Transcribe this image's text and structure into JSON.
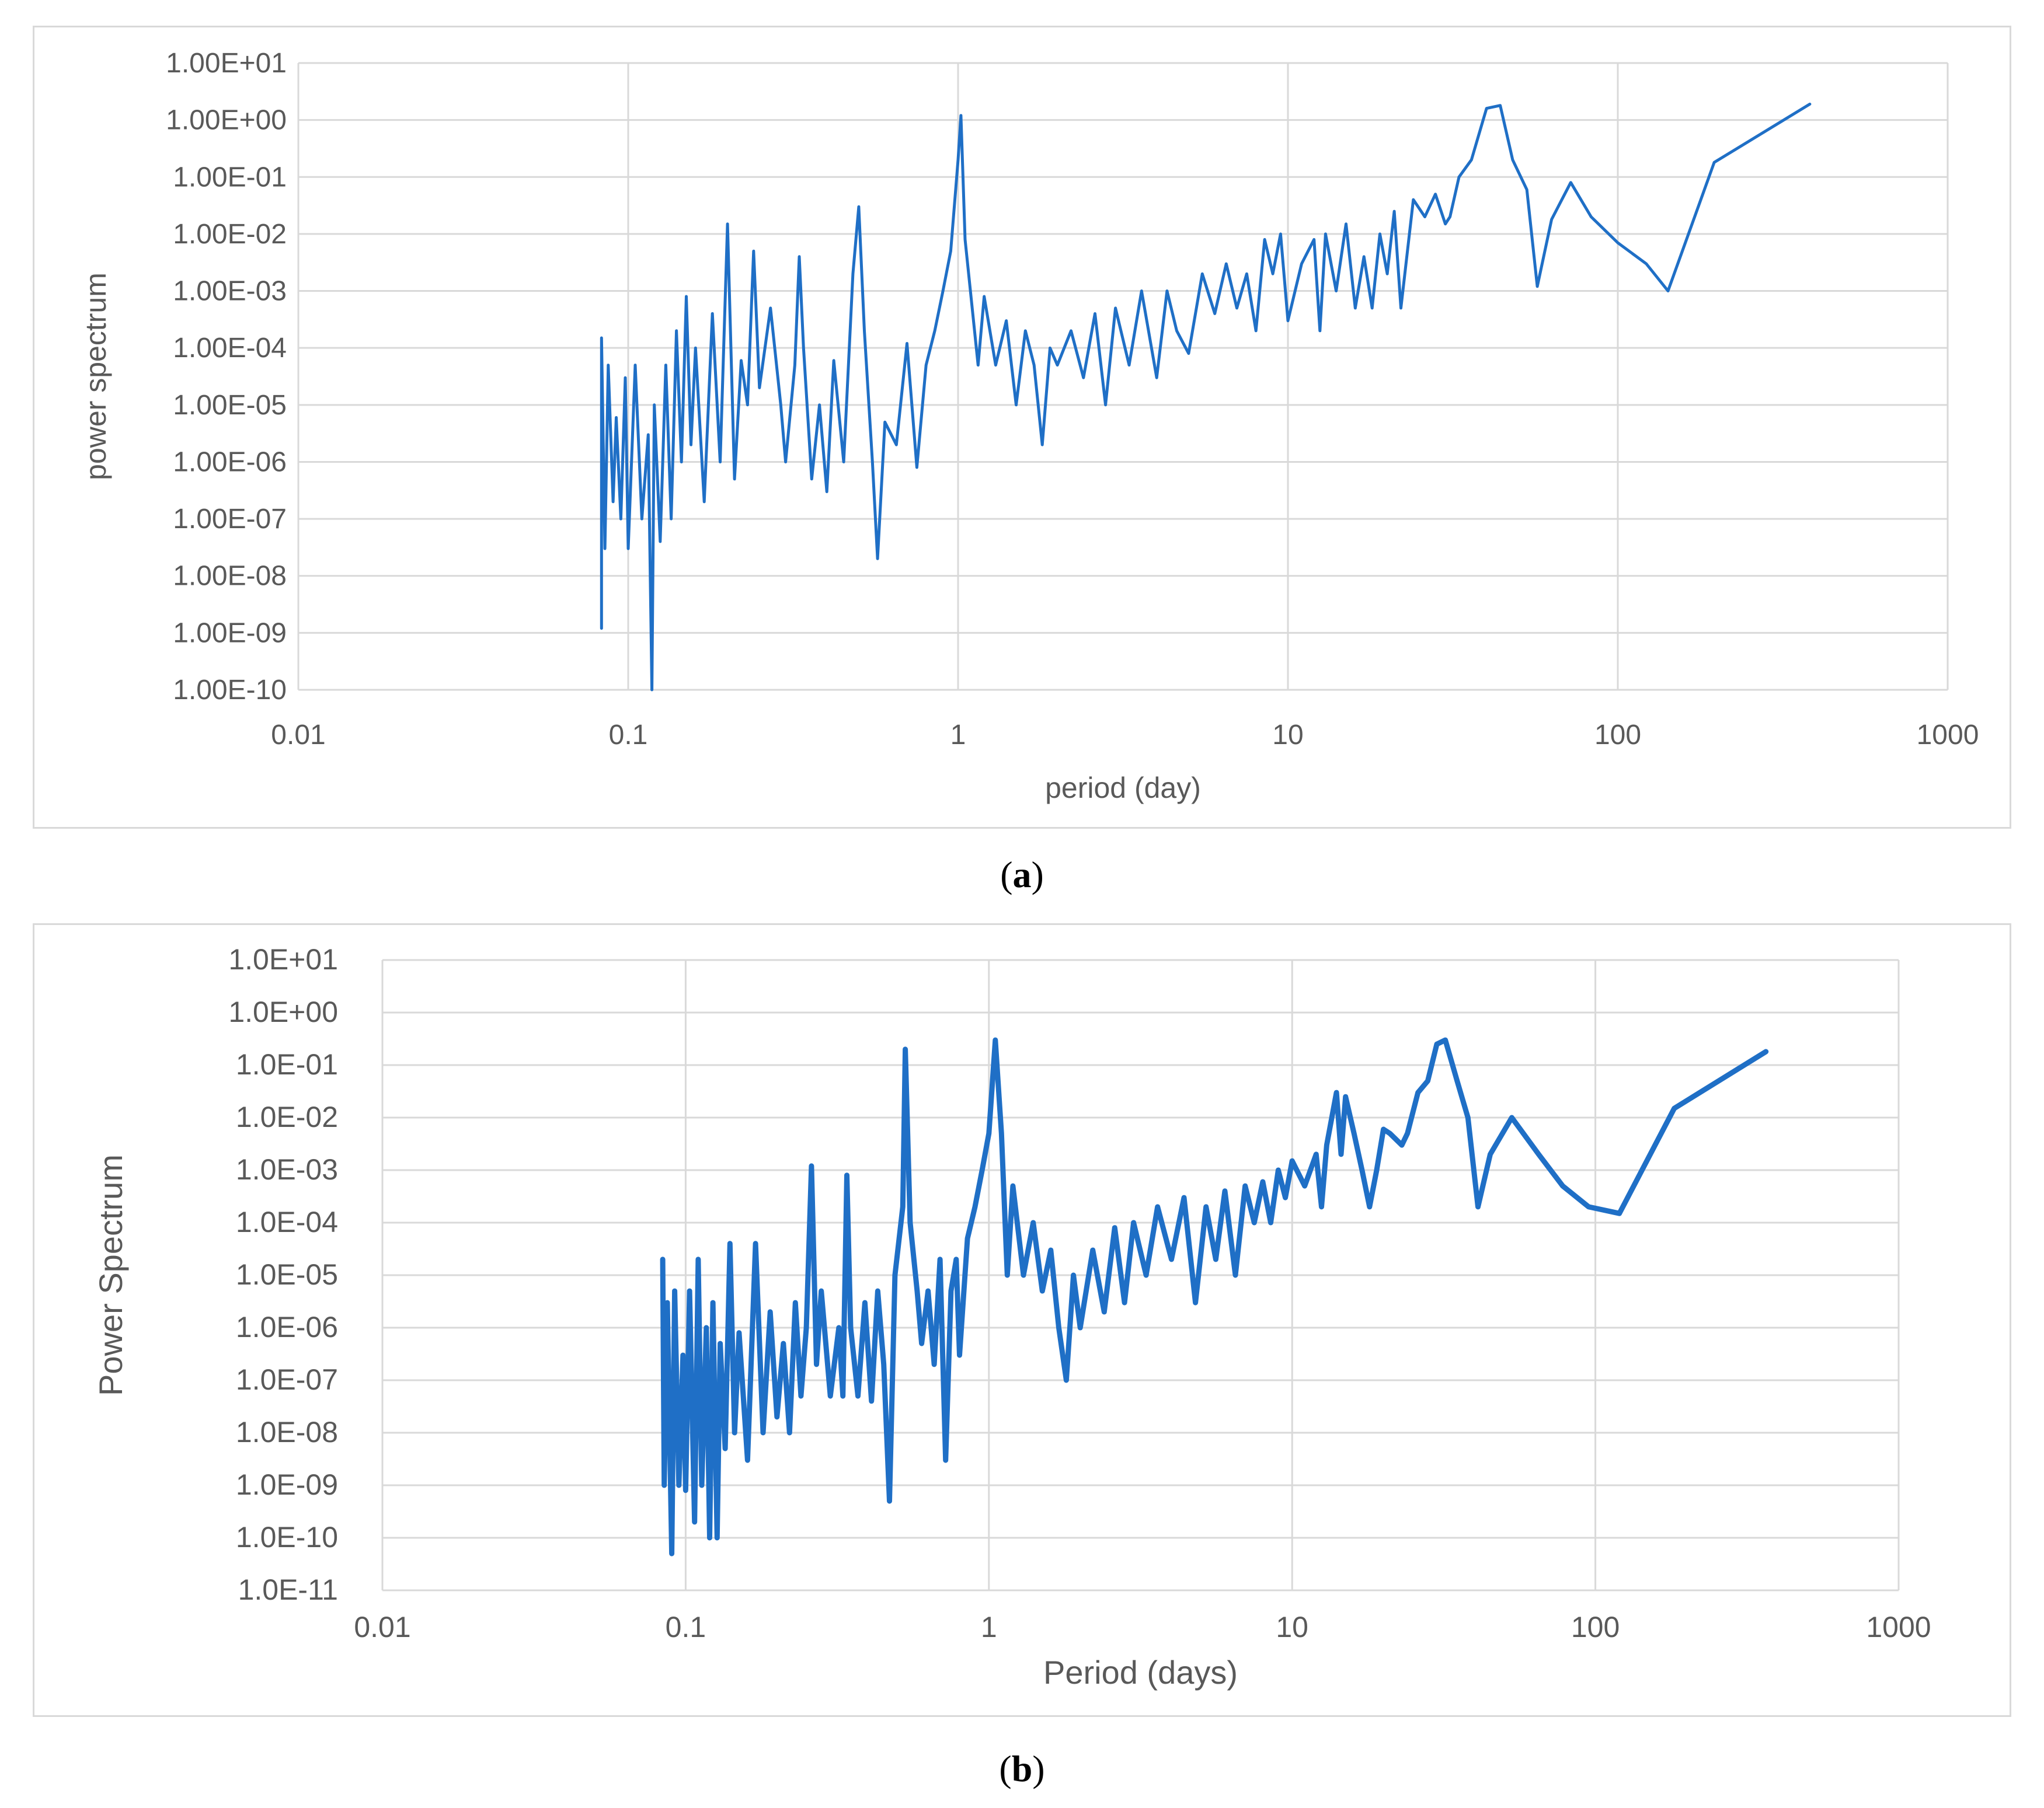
{
  "captions": {
    "a": {
      "open": "(",
      "letter": "a",
      "close": ")"
    },
    "b": {
      "open": "(",
      "letter": "b",
      "close": ")"
    }
  },
  "colors": {
    "series": "#1f6fc6",
    "grid": "#d9d9d9",
    "text": "#595959"
  },
  "chart_data": [
    {
      "id": "a",
      "type": "line",
      "xscale": "log",
      "yscale": "log",
      "xlabel": "period (day)",
      "ylabel": "power spectrum",
      "xlim": [
        0.01,
        1000
      ],
      "ylim": [
        1e-10,
        10
      ],
      "x_tick_labels": [
        "0.01",
        "0.1",
        "1",
        "10",
        "100",
        "1000"
      ],
      "y_tick_labels": [
        "1.00E-10",
        "1.00E-09",
        "1.00E-08",
        "1.00E-07",
        "1.00E-06",
        "1.00E-05",
        "1.00E-04",
        "1.00E-03",
        "1.00E-02",
        "1.00E-01",
        "1.00E+00",
        "1.00E+01"
      ],
      "series": [
        {
          "name": "power spectrum",
          "points": [
            [
              0.083,
              1.2e-09
            ],
            [
              0.083,
              0.00015
            ],
            [
              0.085,
              3e-08
            ],
            [
              0.087,
              5e-05
            ],
            [
              0.09,
              2e-07
            ],
            [
              0.092,
              6e-06
            ],
            [
              0.095,
              1e-07
            ],
            [
              0.098,
              3e-05
            ],
            [
              0.1,
              3e-08
            ],
            [
              0.105,
              5e-05
            ],
            [
              0.11,
              1e-07
            ],
            [
              0.115,
              3e-06
            ],
            [
              0.118,
              1e-10
            ],
            [
              0.12,
              1e-05
            ],
            [
              0.125,
              4e-08
            ],
            [
              0.13,
              5e-05
            ],
            [
              0.135,
              1e-07
            ],
            [
              0.14,
              0.0002
            ],
            [
              0.145,
              1e-06
            ],
            [
              0.15,
              0.0008
            ],
            [
              0.155,
              2e-06
            ],
            [
              0.16,
              0.0001
            ],
            [
              0.17,
              2e-07
            ],
            [
              0.18,
              0.0004
            ],
            [
              0.19,
              1e-06
            ],
            [
              0.2,
              0.015
            ],
            [
              0.21,
              5e-07
            ],
            [
              0.22,
              6e-05
            ],
            [
              0.23,
              1e-05
            ],
            [
              0.24,
              0.005
            ],
            [
              0.25,
              2e-05
            ],
            [
              0.27,
              0.0005
            ],
            [
              0.29,
              1e-05
            ],
            [
              0.3,
              1e-06
            ],
            [
              0.32,
              5e-05
            ],
            [
              0.33,
              0.004
            ],
            [
              0.34,
              0.0001
            ],
            [
              0.36,
              5e-07
            ],
            [
              0.38,
              1e-05
            ],
            [
              0.4,
              3e-07
            ],
            [
              0.42,
              6e-05
            ],
            [
              0.45,
              1e-06
            ],
            [
              0.48,
              0.002
            ],
            [
              0.5,
              0.03
            ],
            [
              0.52,
              0.0002
            ],
            [
              0.55,
              1e-06
            ],
            [
              0.57,
              2e-08
            ],
            [
              0.6,
              5e-06
            ],
            [
              0.65,
              2e-06
            ],
            [
              0.7,
              0.00012
            ],
            [
              0.75,
              8e-07
            ],
            [
              0.8,
              5e-05
            ],
            [
              0.85,
              0.0002
            ],
            [
              0.9,
              0.001
            ],
            [
              0.95,
              0.005
            ],
            [
              1.0,
              0.2
            ],
            [
              1.02,
              1.2
            ],
            [
              1.05,
              0.008
            ],
            [
              1.1,
              0.0006
            ],
            [
              1.15,
              5e-05
            ],
            [
              1.2,
              0.0008
            ],
            [
              1.3,
              5e-05
            ],
            [
              1.4,
              0.0003
            ],
            [
              1.5,
              1e-05
            ],
            [
              1.6,
              0.0002
            ],
            [
              1.7,
              5e-05
            ],
            [
              1.8,
              2e-06
            ],
            [
              1.9,
              0.0001
            ],
            [
              2.0,
              5e-05
            ],
            [
              2.2,
              0.0002
            ],
            [
              2.4,
              3e-05
            ],
            [
              2.6,
              0.0004
            ],
            [
              2.8,
              1e-05
            ],
            [
              3.0,
              0.0005
            ],
            [
              3.3,
              5e-05
            ],
            [
              3.6,
              0.001
            ],
            [
              4.0,
              3e-05
            ],
            [
              4.3,
              0.001
            ],
            [
              4.6,
              0.0002
            ],
            [
              5.0,
              8e-05
            ],
            [
              5.5,
              0.002
            ],
            [
              6.0,
              0.0004
            ],
            [
              6.5,
              0.003
            ],
            [
              7.0,
              0.0005
            ],
            [
              7.5,
              0.002
            ],
            [
              8.0,
              0.0002
            ],
            [
              8.5,
              0.008
            ],
            [
              9.0,
              0.002
            ],
            [
              9.5,
              0.01
            ],
            [
              10.0,
              0.0003
            ],
            [
              11,
              0.003
            ],
            [
              12,
              0.008
            ],
            [
              12.5,
              0.0002
            ],
            [
              13,
              0.01
            ],
            [
              14,
              0.001
            ],
            [
              15,
              0.015
            ],
            [
              16,
              0.0005
            ],
            [
              17,
              0.004
            ],
            [
              18,
              0.0005
            ],
            [
              19,
              0.01
            ],
            [
              20,
              0.002
            ],
            [
              21,
              0.025
            ],
            [
              22,
              0.0005
            ],
            [
              24,
              0.04
            ],
            [
              26,
              0.02
            ],
            [
              28,
              0.05
            ],
            [
              30,
              0.015
            ],
            [
              31,
              0.02
            ],
            [
              33,
              0.1
            ],
            [
              36,
              0.2
            ],
            [
              40,
              1.6
            ],
            [
              44,
              1.8
            ],
            [
              48,
              0.2
            ],
            [
              53,
              0.06
            ],
            [
              57,
              0.0012
            ],
            [
              63,
              0.018
            ],
            [
              72,
              0.08
            ],
            [
              83,
              0.02
            ],
            [
              100,
              0.007
            ],
            [
              122,
              0.003
            ],
            [
              142,
              0.001
            ],
            [
              196,
              0.18
            ],
            [
              382,
              1.9
            ]
          ]
        }
      ]
    },
    {
      "id": "b",
      "type": "line",
      "xscale": "log",
      "yscale": "log",
      "xlabel": "Period (days)",
      "ylabel": "Power Spectrum",
      "xlim": [
        0.01,
        1000
      ],
      "ylim": [
        1e-11,
        10
      ],
      "x_tick_labels": [
        "0.01",
        "0.1",
        "1",
        "10",
        "100",
        "1000"
      ],
      "y_tick_labels": [
        "1.0E-11",
        "1.0E-10",
        "1.0E-09",
        "1.0E-08",
        "1.0E-07",
        "1.0E-06",
        "1.0E-05",
        "1.0E-04",
        "1.0E-03",
        "1.0E-02",
        "1.0E-01",
        "1.0E+00",
        "1.0E+01"
      ],
      "series": [
        {
          "name": "Power Spectrum",
          "points": [
            [
              0.084,
              2e-05
            ],
            [
              0.085,
              1e-09
            ],
            [
              0.087,
              3e-06
            ],
            [
              0.09,
              5e-11
            ],
            [
              0.092,
              5e-06
            ],
            [
              0.095,
              1e-09
            ],
            [
              0.098,
              3e-07
            ],
            [
              0.1,
              8e-10
            ],
            [
              0.103,
              5e-06
            ],
            [
              0.107,
              2e-10
            ],
            [
              0.11,
              2e-05
            ],
            [
              0.113,
              1e-09
            ],
            [
              0.117,
              1e-06
            ],
            [
              0.12,
              1e-10
            ],
            [
              0.123,
              3e-06
            ],
            [
              0.127,
              1e-10
            ],
            [
              0.13,
              5e-07
            ],
            [
              0.135,
              5e-09
            ],
            [
              0.14,
              4e-05
            ],
            [
              0.145,
              1e-08
            ],
            [
              0.15,
              8e-07
            ],
            [
              0.16,
              3e-09
            ],
            [
              0.17,
              4e-05
            ],
            [
              0.18,
              1e-08
            ],
            [
              0.19,
              2e-06
            ],
            [
              0.2,
              2e-08
            ],
            [
              0.21,
              5e-07
            ],
            [
              0.22,
              1e-08
            ],
            [
              0.23,
              3e-06
            ],
            [
              0.24,
              5e-08
            ],
            [
              0.25,
              1e-06
            ],
            [
              0.26,
              0.0012
            ],
            [
              0.27,
              2e-07
            ],
            [
              0.28,
              5e-06
            ],
            [
              0.3,
              5e-08
            ],
            [
              0.32,
              1e-06
            ],
            [
              0.33,
              5e-08
            ],
            [
              0.34,
              0.0008
            ],
            [
              0.35,
              1e-06
            ],
            [
              0.37,
              5e-08
            ],
            [
              0.39,
              3e-06
            ],
            [
              0.41,
              4e-08
            ],
            [
              0.43,
              5e-06
            ],
            [
              0.45,
              2e-07
            ],
            [
              0.47,
              5e-10
            ],
            [
              0.49,
              1e-05
            ],
            [
              0.52,
              0.0002
            ],
            [
              0.53,
              0.2
            ],
            [
              0.55,
              0.0001
            ],
            [
              0.58,
              5e-06
            ],
            [
              0.6,
              5e-07
            ],
            [
              0.63,
              5e-06
            ],
            [
              0.66,
              2e-07
            ],
            [
              0.69,
              2e-05
            ],
            [
              0.72,
              3e-09
            ],
            [
              0.75,
              5e-06
            ],
            [
              0.78,
              2e-05
            ],
            [
              0.8,
              3e-07
            ],
            [
              0.85,
              5e-05
            ],
            [
              0.9,
              0.0002
            ],
            [
              0.95,
              0.001
            ],
            [
              1.0,
              0.005
            ],
            [
              1.05,
              0.3
            ],
            [
              1.1,
              0.005
            ],
            [
              1.15,
              1e-05
            ],
            [
              1.2,
              0.0005
            ],
            [
              1.3,
              1e-05
            ],
            [
              1.4,
              0.0001
            ],
            [
              1.5,
              5e-06
            ],
            [
              1.6,
              3e-05
            ],
            [
              1.7,
              1e-06
            ],
            [
              1.8,
              1e-07
            ],
            [
              1.9,
              1e-05
            ],
            [
              2.0,
              1e-06
            ],
            [
              2.2,
              3e-05
            ],
            [
              2.4,
              2e-06
            ],
            [
              2.6,
              8e-05
            ],
            [
              2.8,
              3e-06
            ],
            [
              3.0,
              0.0001
            ],
            [
              3.3,
              1e-05
            ],
            [
              3.6,
              0.0002
            ],
            [
              4.0,
              2e-05
            ],
            [
              4.4,
              0.0003
            ],
            [
              4.8,
              3e-06
            ],
            [
              5.2,
              0.0002
            ],
            [
              5.6,
              2e-05
            ],
            [
              6.0,
              0.0004
            ],
            [
              6.5,
              1e-05
            ],
            [
              7.0,
              0.0005
            ],
            [
              7.5,
              0.0001
            ],
            [
              8.0,
              0.0006
            ],
            [
              8.5,
              0.0001
            ],
            [
              9.0,
              0.001
            ],
            [
              9.5,
              0.0003
            ],
            [
              10,
              0.0015
            ],
            [
              11,
              0.0005
            ],
            [
              12,
              0.002
            ],
            [
              12.5,
              0.0002
            ],
            [
              13,
              0.003
            ],
            [
              14,
              0.03
            ],
            [
              14.5,
              0.002
            ],
            [
              15,
              0.025
            ],
            [
              16,
              0.005
            ],
            [
              17,
              0.001
            ],
            [
              18,
              0.0002
            ],
            [
              19,
              0.001
            ],
            [
              20,
              0.006
            ],
            [
              21,
              0.005
            ],
            [
              23,
              0.003
            ],
            [
              24,
              0.005
            ],
            [
              26,
              0.03
            ],
            [
              28,
              0.05
            ],
            [
              30,
              0.25
            ],
            [
              32,
              0.3
            ],
            [
              35,
              0.05
            ],
            [
              38,
              0.01
            ],
            [
              41,
              0.0002
            ],
            [
              45,
              0.002
            ],
            [
              53,
              0.01
            ],
            [
              65,
              0.002
            ],
            [
              78,
              0.0005
            ],
            [
              95,
              0.0002
            ],
            [
              120,
              0.00015
            ],
            [
              182,
              0.015
            ],
            [
              365,
              0.18
            ]
          ]
        }
      ]
    }
  ]
}
